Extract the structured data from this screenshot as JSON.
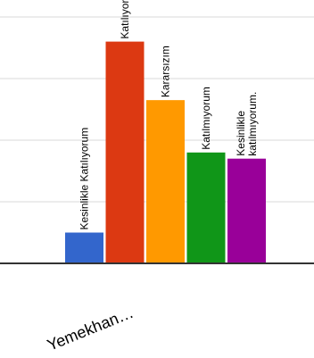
{
  "chart_data": {
    "type": "bar",
    "categories": [
      "Yemekhan…"
    ],
    "series": [
      {
        "name": "Kesinlikle Katılıyorum",
        "values": [
          1
        ],
        "color": "#3366cc"
      },
      {
        "name": "Katılıyorum",
        "values": [
          7.2
        ],
        "color": "#dc3912"
      },
      {
        "name": "Kararsızım",
        "values": [
          5.3
        ],
        "color": "#ff9900"
      },
      {
        "name": "Katılmıyorum",
        "values": [
          3.6
        ],
        "color": "#109618"
      },
      {
        "name": "Kesinlikle katılmıyorum.",
        "values": [
          3.4
        ],
        "color": "#990099"
      }
    ],
    "bar_labels": [
      [
        "Kesinlikle Katılıyorum"
      ],
      [
        "Katılıyorum"
      ],
      [
        "Kararsızım"
      ],
      [
        "Katılmıyorum"
      ],
      [
        "Kesinlikle",
        "katılmıyorum."
      ]
    ],
    "ylim": [
      0,
      8
    ],
    "grid": true,
    "legend": "none"
  }
}
